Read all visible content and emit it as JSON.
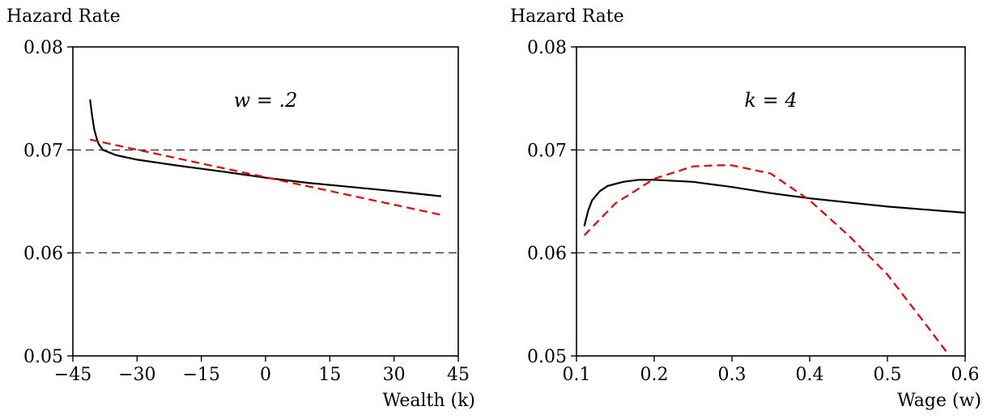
{
  "chart_data": [
    {
      "type": "line",
      "ylabel": "Hazard Rate",
      "xlabel": "Wealth (k)",
      "annotation": "w = .2",
      "xlim": [
        -45,
        45
      ],
      "ylim": [
        0.05,
        0.08
      ],
      "xticks": [
        -45,
        -30,
        -15,
        0,
        15,
        30,
        45
      ],
      "xtick_labels": [
        "−45",
        "−30",
        "−15",
        "0",
        "15",
        "30",
        "45"
      ],
      "yticks": [
        0.05,
        0.06,
        0.07,
        0.08
      ],
      "ytick_labels": [
        "0.05",
        "0.06",
        "0.07",
        "0.08"
      ],
      "reference_lines_y": [
        0.06,
        0.07
      ],
      "grid": false,
      "series": [
        {
          "style": "solid",
          "color": "#000000",
          "x": [
            -41,
            -40.5,
            -40,
            -39.5,
            -39,
            -38,
            -35,
            -30,
            -20,
            -10,
            0,
            10,
            20,
            30,
            41
          ],
          "y": [
            0.0749,
            0.0733,
            0.072,
            0.0712,
            0.0706,
            0.07,
            0.0695,
            0.06905,
            0.06845,
            0.0679,
            0.0673,
            0.0668,
            0.0664,
            0.066,
            0.0655
          ]
        },
        {
          "style": "dashed",
          "color": "#e00000",
          "x": [
            -41,
            41
          ],
          "y": [
            0.071,
            0.0637
          ]
        }
      ]
    },
    {
      "type": "line",
      "ylabel": "Hazard Rate",
      "xlabel": "Wage (w)",
      "annotation": "k = 4",
      "xlim": [
        0.1,
        0.6
      ],
      "ylim": [
        0.05,
        0.08
      ],
      "xticks": [
        0.1,
        0.2,
        0.3,
        0.4,
        0.5,
        0.6
      ],
      "xtick_labels": [
        "0.1",
        "0.2",
        "0.3",
        "0.4",
        "0.5",
        "0.6"
      ],
      "yticks": [
        0.05,
        0.06,
        0.07,
        0.08
      ],
      "ytick_labels": [
        "0.05",
        "0.06",
        "0.07",
        "0.08"
      ],
      "reference_lines_y": [
        0.06,
        0.07
      ],
      "grid": false,
      "series": [
        {
          "style": "solid",
          "color": "#000000",
          "x": [
            0.11,
            0.115,
            0.12,
            0.13,
            0.14,
            0.16,
            0.18,
            0.2,
            0.25,
            0.3,
            0.35,
            0.4,
            0.45,
            0.5,
            0.55,
            0.6
          ],
          "y": [
            0.0626,
            0.0641,
            0.0651,
            0.066,
            0.0665,
            0.0669,
            0.0671,
            0.0671,
            0.0669,
            0.0664,
            0.0658,
            0.0653,
            0.0649,
            0.0645,
            0.0642,
            0.0639
          ]
        },
        {
          "style": "dashed",
          "color": "#e00000",
          "x": [
            0.11,
            0.15,
            0.2,
            0.25,
            0.28,
            0.3,
            0.35,
            0.4,
            0.45,
            0.5,
            0.55,
            0.58
          ],
          "y": [
            0.0617,
            0.0648,
            0.0672,
            0.0684,
            0.0685,
            0.0685,
            0.0677,
            0.0651,
            0.0617,
            0.0579,
            0.053,
            0.05
          ]
        }
      ]
    }
  ]
}
